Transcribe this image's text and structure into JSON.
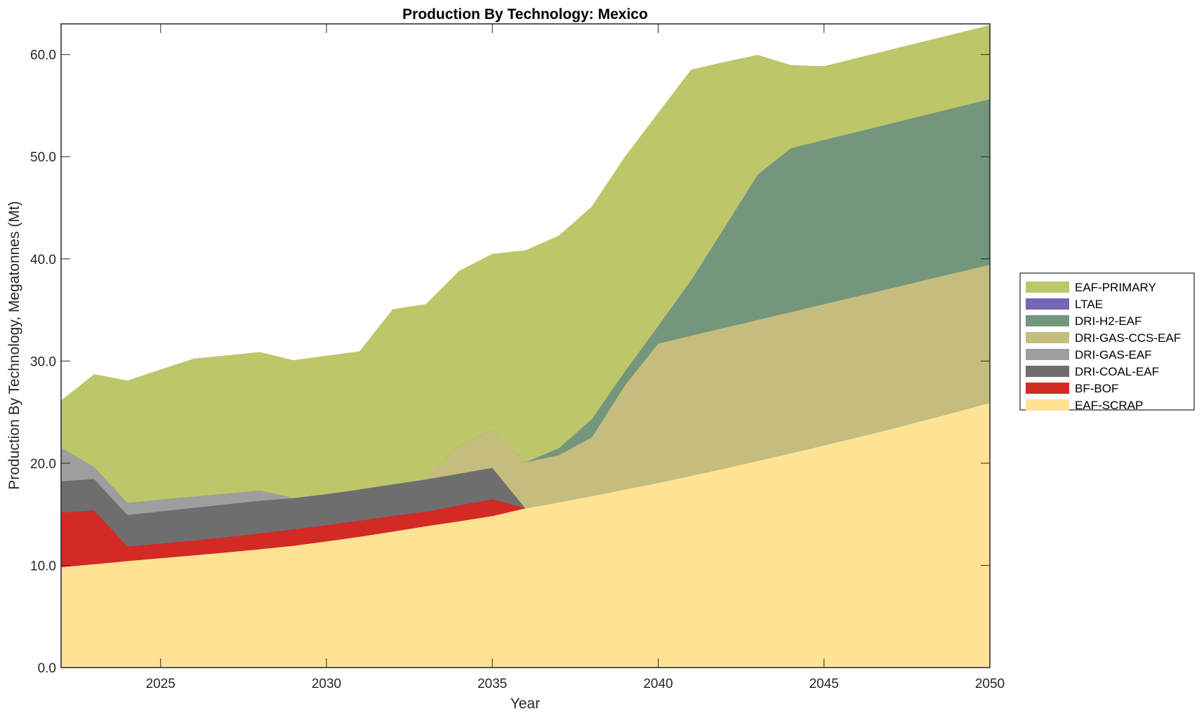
{
  "chart_data": {
    "type": "area",
    "stacked": true,
    "title": "Production By Technology: Mexico",
    "xlabel": "Year",
    "ylabel": "Production By Technology, Megatonnes (Mt)",
    "xlim": [
      2022,
      2050
    ],
    "ylim": [
      0,
      63
    ],
    "xticks": [
      2025,
      2030,
      2035,
      2040,
      2045,
      2050
    ],
    "xtick_labels": [
      "2025",
      "2030",
      "2035",
      "2040",
      "2045",
      "2050"
    ],
    "yticks": [
      0,
      10,
      20,
      30,
      40,
      50,
      60
    ],
    "ytick_labels": [
      "0.0",
      "10.0",
      "20.0",
      "30.0",
      "40.0",
      "50.0",
      "60.0"
    ],
    "grid": false,
    "legend_position": "right",
    "x": [
      2022,
      2023,
      2024,
      2025,
      2026,
      2027,
      2028,
      2029,
      2030,
      2031,
      2032,
      2033,
      2034,
      2035,
      2036,
      2037,
      2038,
      2039,
      2040,
      2041,
      2042,
      2043,
      2044,
      2045,
      2046,
      2047,
      2048,
      2049,
      2050
    ],
    "series": [
      {
        "name": "EAF-SCRAP",
        "color": "#FFE394",
        "values": [
          9.84,
          10.13,
          10.44,
          10.72,
          11.0,
          11.29,
          11.6,
          11.93,
          12.36,
          12.82,
          13.32,
          13.85,
          14.33,
          14.84,
          15.6,
          16.2,
          16.8,
          17.45,
          18.1,
          18.8,
          19.5,
          20.25,
          21.0,
          21.77,
          22.55,
          23.35,
          24.2,
          25.05,
          25.94
        ]
      },
      {
        "name": "BF-BOF",
        "color": "#D32A25",
        "values": [
          5.34,
          5.27,
          1.42,
          1.43,
          1.45,
          1.49,
          1.55,
          1.62,
          1.59,
          1.58,
          1.53,
          1.44,
          1.55,
          1.64,
          0,
          0,
          0,
          0,
          0,
          0,
          0,
          0,
          0,
          0,
          0,
          0,
          0,
          0,
          0
        ]
      },
      {
        "name": "DRI-COAL-EAF",
        "color": "#6E6E6E",
        "values": [
          3.07,
          3.07,
          3.09,
          3.15,
          3.2,
          3.22,
          3.2,
          3.05,
          3.05,
          3.05,
          3.1,
          3.14,
          3.12,
          3.09,
          0,
          0,
          0,
          0,
          0,
          0,
          0,
          0,
          0,
          0,
          0,
          0,
          0,
          0,
          0
        ]
      },
      {
        "name": "DRI-GAS-EAF",
        "color": "#9E9E9E",
        "values": [
          3.29,
          1.17,
          1.19,
          1.15,
          1.1,
          1.05,
          1.0,
          0,
          0,
          0,
          0,
          0,
          0,
          0,
          0,
          0,
          0,
          0,
          0,
          0,
          0,
          0,
          0,
          0,
          0,
          0,
          0,
          0,
          0
        ]
      },
      {
        "name": "DRI-GAS-CCS-EAF",
        "color": "#C5BD7E",
        "values": [
          0,
          0,
          0,
          0,
          0,
          0,
          0,
          0,
          0,
          0,
          0,
          0,
          2.77,
          3.73,
          4.5,
          4.59,
          5.75,
          10.21,
          13.63,
          13.7,
          13.77,
          13.79,
          13.81,
          13.81,
          13.8,
          13.77,
          13.7,
          13.62,
          13.5
        ]
      },
      {
        "name": "DRI-H2-EAF",
        "color": "#74967C",
        "values": [
          0,
          0,
          0,
          0,
          0,
          0,
          0,
          0,
          0,
          0,
          0,
          0,
          0,
          0,
          0,
          0.68,
          1.78,
          1.37,
          1.72,
          5.46,
          9.83,
          14.22,
          16.04,
          16.07,
          16.1,
          16.13,
          16.15,
          16.18,
          16.21
        ]
      },
      {
        "name": "LTAE",
        "color": "#7467B8",
        "values": [
          0,
          0,
          0,
          0,
          0,
          0,
          0,
          0,
          0,
          0,
          0,
          0,
          0,
          0,
          0,
          0,
          0,
          0,
          0,
          0,
          0,
          0,
          0,
          0,
          0,
          0,
          0,
          0,
          0
        ]
      },
      {
        "name": "EAF-PRIMARY",
        "color": "#BDC76A",
        "values": [
          4.58,
          9.05,
          11.93,
          12.7,
          13.47,
          13.49,
          13.51,
          13.46,
          13.5,
          13.48,
          17.1,
          17.12,
          17.03,
          17.17,
          20.72,
          20.77,
          20.77,
          20.95,
          20.81,
          20.56,
          16.15,
          11.68,
          8.1,
          7.19,
          7.2,
          7.2,
          7.2,
          7.2,
          7.21
        ]
      }
    ],
    "legend_order": [
      "EAF-PRIMARY",
      "LTAE",
      "DRI-H2-EAF",
      "DRI-GAS-CCS-EAF",
      "DRI-GAS-EAF",
      "DRI-COAL-EAF",
      "BF-BOF",
      "EAF-SCRAP"
    ]
  }
}
